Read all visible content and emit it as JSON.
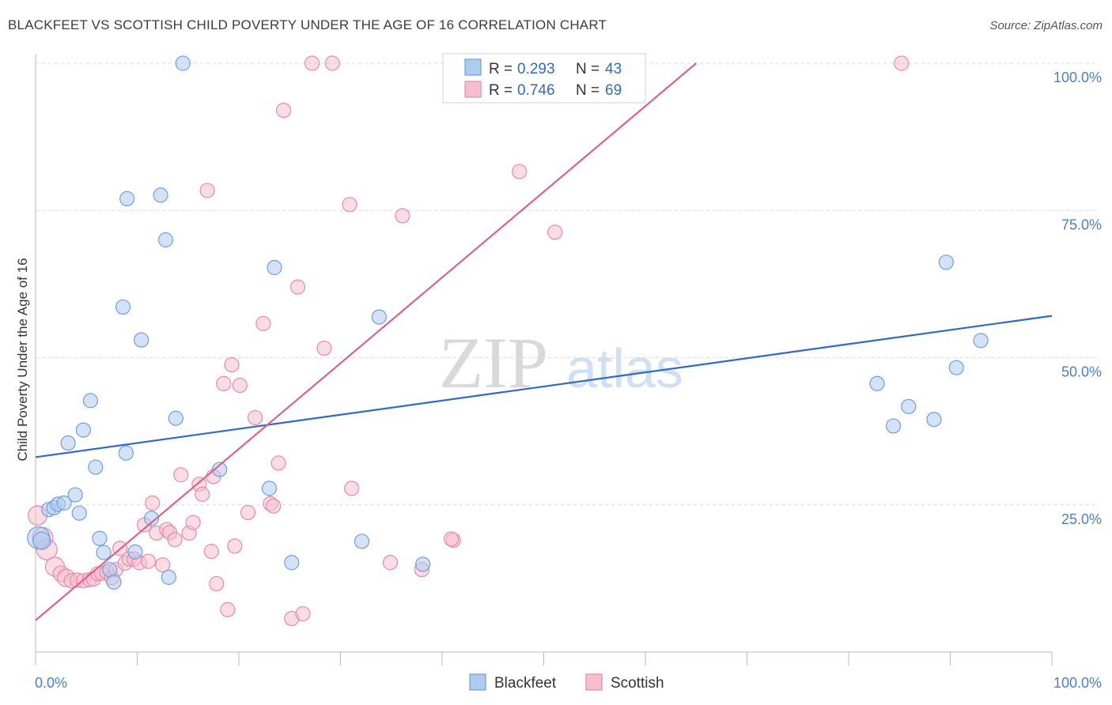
{
  "title": "BLACKFEET VS SCOTTISH CHILD POVERTY UNDER THE AGE OF 16 CORRELATION CHART",
  "source": "Source: ZipAtlas.com",
  "watermark": {
    "zip": "ZIP",
    "atlas": "atlas"
  },
  "colors": {
    "blackfeet_fill": "#aecbf0",
    "blackfeet_stroke": "#6f9fde",
    "blackfeet_line": "#2f6ac8",
    "scottish_fill": "#f6bfd0",
    "scottish_stroke": "#e98aa9",
    "scottish_line": "#e0608c",
    "grid": "#dcdcdc",
    "tick_text": "#4a7fd0"
  },
  "legend": {
    "rows": [
      {
        "r_label": "R = ",
        "r_value": "0.293",
        "n_label": "N = ",
        "n_value": "43"
      },
      {
        "r_label": "R = ",
        "r_value": "0.746",
        "n_label": "N = ",
        "n_value": "69"
      }
    ]
  },
  "bottom_legend": [
    "Blackfeet",
    "Scottish"
  ],
  "chart_data": {
    "type": "scatter",
    "title": "BLACKFEET VS SCOTTISH CHILD POVERTY UNDER THE AGE OF 16 CORRELATION CHART",
    "xlabel": "",
    "ylabel": "Child Poverty Under the Age of 16",
    "xlim": [
      0,
      100
    ],
    "ylim": [
      0,
      100
    ],
    "x_tick_labels": [
      "0.0%",
      "100.0%"
    ],
    "y_tick_labels": [
      {
        "value": 100,
        "label": "100.0%"
      },
      {
        "value": 75,
        "label": "75.0%"
      },
      {
        "value": 50,
        "label": "50.0%"
      },
      {
        "value": 25,
        "label": "25.0%"
      }
    ],
    "grid": true,
    "legend_position": "top-center",
    "series": [
      {
        "name": "Blackfeet",
        "r": 0.293,
        "n": 43,
        "trend": {
          "x": [
            0,
            100
          ],
          "y": [
            33.1,
            57.1
          ]
        },
        "points": [
          [
            0.3,
            19.4,
            14
          ],
          [
            0.6,
            18.9,
            11
          ],
          [
            1.3,
            24.2,
            9
          ],
          [
            1.8,
            24.5,
            9
          ],
          [
            2.2,
            25.1,
            9
          ],
          [
            2.8,
            25.3,
            9
          ],
          [
            3.2,
            35.5,
            9
          ],
          [
            3.9,
            26.7,
            9
          ],
          [
            4.3,
            23.6,
            9
          ],
          [
            4.7,
            37.7,
            9
          ],
          [
            5.4,
            42.7,
            9
          ],
          [
            5.9,
            31.4,
            9
          ],
          [
            6.3,
            19.3,
            9
          ],
          [
            6.7,
            16.9,
            9
          ],
          [
            7.3,
            14.0,
            9
          ],
          [
            7.7,
            11.9,
            9
          ],
          [
            8.6,
            58.6,
            9
          ],
          [
            8.9,
            33.8,
            9
          ],
          [
            9.0,
            77.0,
            9
          ],
          [
            9.8,
            17.0,
            9
          ],
          [
            10.4,
            53.0,
            9
          ],
          [
            11.4,
            22.7,
            9
          ],
          [
            12.3,
            77.6,
            9
          ],
          [
            12.8,
            70.0,
            9
          ],
          [
            13.1,
            12.7,
            9
          ],
          [
            13.8,
            39.7,
            9
          ],
          [
            14.5,
            100.0,
            9
          ],
          [
            18.1,
            31.0,
            9
          ],
          [
            23.0,
            27.8,
            9
          ],
          [
            23.5,
            65.3,
            9
          ],
          [
            25.2,
            15.2,
            9
          ],
          [
            32.1,
            18.8,
            9
          ],
          [
            33.8,
            56.9,
            9
          ],
          [
            38.1,
            14.9,
            9
          ],
          [
            41.1,
            100.0,
            9
          ],
          [
            47.2,
            100.0,
            9
          ],
          [
            82.8,
            45.6,
            9
          ],
          [
            84.4,
            38.4,
            9
          ],
          [
            85.9,
            41.7,
            9
          ],
          [
            88.4,
            39.5,
            9
          ],
          [
            89.6,
            66.2,
            9
          ],
          [
            90.6,
            48.3,
            9
          ],
          [
            93.0,
            52.9,
            9
          ]
        ]
      },
      {
        "name": "Scottish",
        "r": 0.746,
        "n": 69,
        "trend": {
          "x": [
            0,
            65
          ],
          "y": [
            5.4,
            100.0
          ]
        },
        "points": [
          [
            0.2,
            23.2,
            12
          ],
          [
            0.7,
            19.4,
            13
          ],
          [
            1.1,
            17.4,
            13
          ],
          [
            1.9,
            14.5,
            12
          ],
          [
            2.5,
            13.3,
            10
          ],
          [
            3.0,
            12.6,
            11
          ],
          [
            3.5,
            12.1,
            9
          ],
          [
            4.1,
            12.2,
            9
          ],
          [
            4.7,
            12.1,
            9
          ],
          [
            5.3,
            12.3,
            9
          ],
          [
            5.7,
            12.4,
            9
          ],
          [
            6.1,
            13.3,
            9
          ],
          [
            6.5,
            13.4,
            9
          ],
          [
            7.0,
            13.6,
            9
          ],
          [
            7.5,
            12.6,
            9
          ],
          [
            7.9,
            14.0,
            9
          ],
          [
            8.3,
            17.6,
            9
          ],
          [
            8.8,
            15.1,
            9
          ],
          [
            9.2,
            15.8,
            9
          ],
          [
            9.7,
            15.8,
            9
          ],
          [
            10.2,
            15.2,
            9
          ],
          [
            10.7,
            21.6,
            9
          ],
          [
            11.1,
            15.4,
            9
          ],
          [
            11.5,
            25.3,
            9
          ],
          [
            11.9,
            20.2,
            9
          ],
          [
            12.5,
            14.8,
            9
          ],
          [
            12.9,
            20.8,
            9
          ],
          [
            13.2,
            20.3,
            9
          ],
          [
            13.7,
            19.1,
            9
          ],
          [
            14.3,
            30.1,
            9
          ],
          [
            15.1,
            20.2,
            9
          ],
          [
            15.5,
            22.0,
            9
          ],
          [
            16.1,
            28.5,
            9
          ],
          [
            16.4,
            26.8,
            9
          ],
          [
            16.9,
            78.4,
            9
          ],
          [
            17.3,
            17.1,
            9
          ],
          [
            17.8,
            11.6,
            9
          ],
          [
            18.5,
            45.6,
            9
          ],
          [
            18.9,
            7.2,
            9
          ],
          [
            19.3,
            48.8,
            9
          ],
          [
            19.6,
            18.0,
            9
          ],
          [
            20.1,
            45.3,
            9
          ],
          [
            20.9,
            23.7,
            9
          ],
          [
            21.6,
            39.8,
            9
          ],
          [
            22.4,
            55.8,
            9
          ],
          [
            23.1,
            25.2,
            9
          ],
          [
            23.4,
            24.8,
            9
          ],
          [
            23.9,
            32.1,
            9
          ],
          [
            24.4,
            92.0,
            9
          ],
          [
            25.2,
            5.7,
            9
          ],
          [
            25.8,
            62.0,
            9
          ],
          [
            26.3,
            6.5,
            9
          ],
          [
            27.2,
            100.0,
            9
          ],
          [
            28.4,
            51.6,
            9
          ],
          [
            29.2,
            100.0,
            9
          ],
          [
            30.9,
            76.0,
            9
          ],
          [
            31.1,
            27.8,
            9
          ],
          [
            34.9,
            15.2,
            9
          ],
          [
            36.1,
            74.1,
            9
          ],
          [
            38.0,
            14.0,
            9
          ],
          [
            41.1,
            19.0,
            9
          ],
          [
            42.8,
            100.0,
            9
          ],
          [
            47.6,
            81.6,
            9
          ],
          [
            51.1,
            71.3,
            9
          ],
          [
            57.3,
            100.0,
            9
          ],
          [
            85.2,
            100.0,
            9
          ],
          [
            44.2,
            100.0,
            9
          ],
          [
            40.9,
            19.2,
            9
          ],
          [
            17.5,
            29.8,
            9
          ]
        ]
      }
    ]
  }
}
